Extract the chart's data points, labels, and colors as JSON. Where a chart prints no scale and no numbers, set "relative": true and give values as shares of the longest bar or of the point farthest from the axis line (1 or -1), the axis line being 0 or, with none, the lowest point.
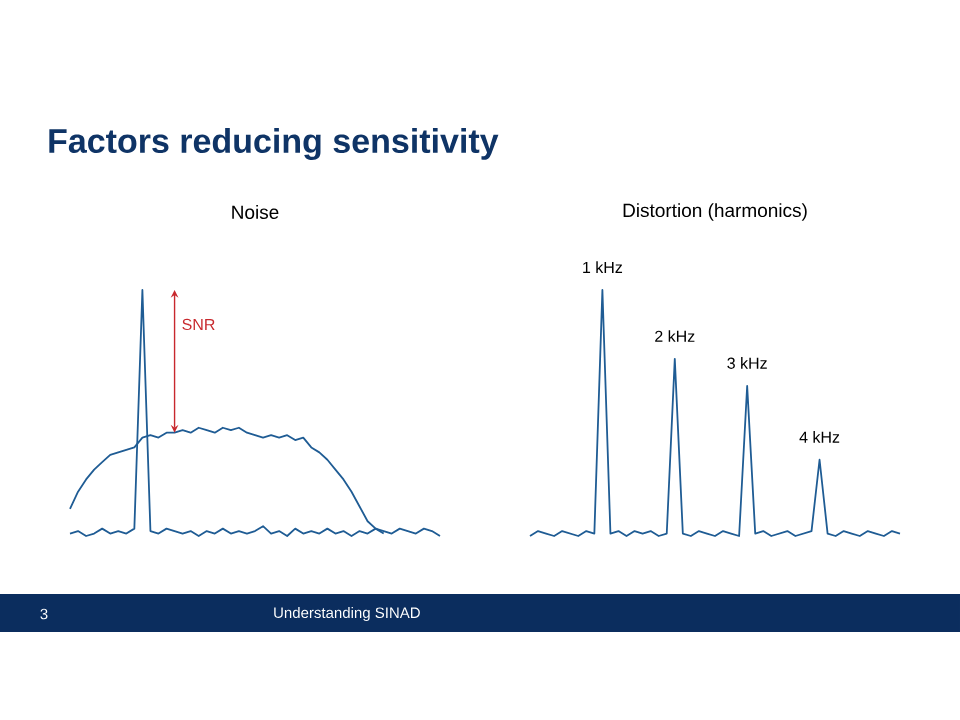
{
  "chart_data": [
    {
      "type": "line",
      "title": "Noise",
      "relative": true,
      "categories": [
        null,
        null,
        null,
        null,
        null,
        null,
        null,
        null,
        null,
        null,
        null,
        null,
        null,
        null,
        null,
        null,
        null,
        null,
        null,
        null,
        null,
        null,
        null,
        null,
        null,
        null,
        null,
        null,
        null,
        null,
        null,
        null,
        null,
        null,
        null,
        null,
        null,
        null,
        null,
        null,
        null,
        null,
        null,
        null,
        null,
        null,
        null
      ],
      "series": [
        {
          "color": "#1f5c94",
          "values": [
            0.01,
            0.02,
            0,
            0.01,
            0.03,
            0.01,
            0.02,
            0.01,
            0.03,
            1.0,
            0.02,
            0.01,
            0.03,
            0.02,
            0.01,
            0.02,
            0,
            0.02,
            0.01,
            0.03,
            0.01,
            0.02,
            0.01,
            0.02,
            0.04,
            0.01,
            0.02,
            0,
            0.03,
            0.01,
            0.02,
            0.01,
            0.03,
            0.01,
            0.02,
            0,
            0.02,
            0.01,
            0.03,
            0.02,
            0.01,
            0.03,
            0.02,
            0.01,
            0.03,
            0.02,
            0
          ]
        },
        {
          "color": "#1f5c94",
          "values": [
            0.11,
            0.18,
            0.23,
            0.27,
            0.3,
            0.33,
            0.34,
            0.35,
            0.36,
            0.4,
            0.41,
            0.4,
            0.42,
            0.42,
            0.43,
            0.42,
            0.44,
            0.43,
            0.42,
            0.44,
            0.43,
            0.44,
            0.42,
            0.41,
            0.4,
            0.41,
            0.4,
            0.41,
            0.39,
            0.4,
            0.36,
            0.34,
            0.31,
            0.27,
            0.23,
            0.18,
            0.12,
            0.06,
            0.03,
            0.01,
            null,
            null,
            null,
            null,
            null,
            null,
            null
          ]
        }
      ],
      "annotations": [
        "SNR"
      ]
    },
    {
      "type": "line",
      "title": "Distortion (harmonics)",
      "relative": true,
      "categories": [
        null,
        null,
        null,
        null,
        null,
        null,
        null,
        null,
        null,
        null,
        null,
        null,
        null,
        null,
        null,
        null,
        null,
        null,
        null,
        null,
        null,
        null,
        null,
        null,
        null,
        null,
        null,
        null,
        null,
        null,
        null,
        null,
        null,
        null,
        null,
        null,
        null,
        null,
        null,
        null,
        null,
        null,
        null,
        null,
        null,
        null,
        null
      ],
      "series": [
        {
          "color": "#1f5c94",
          "values": [
            0,
            0.02,
            0.01,
            0,
            0.02,
            0.01,
            0,
            0.02,
            0.01,
            1.0,
            0.01,
            0.02,
            0,
            0.02,
            0.01,
            0.02,
            0,
            0.01,
            0.72,
            0.01,
            0,
            0.02,
            0.01,
            0,
            0.02,
            0.01,
            0,
            0.61,
            0.01,
            0.02,
            0,
            0.01,
            0.02,
            0,
            0.01,
            0.02,
            0.31,
            0.01,
            0,
            0.02,
            0.01,
            0,
            0.02,
            0.01,
            0,
            0.02,
            0.01
          ]
        }
      ],
      "annotations": [
        "1 kHz",
        "2 kHz",
        "3 kHz",
        "4 kHz"
      ]
    },
    {
      "type": "other",
      "title": "Factors reducing sensitivity",
      "annotations": [
        "3",
        "Understanding SINAD"
      ]
    }
  ]
}
